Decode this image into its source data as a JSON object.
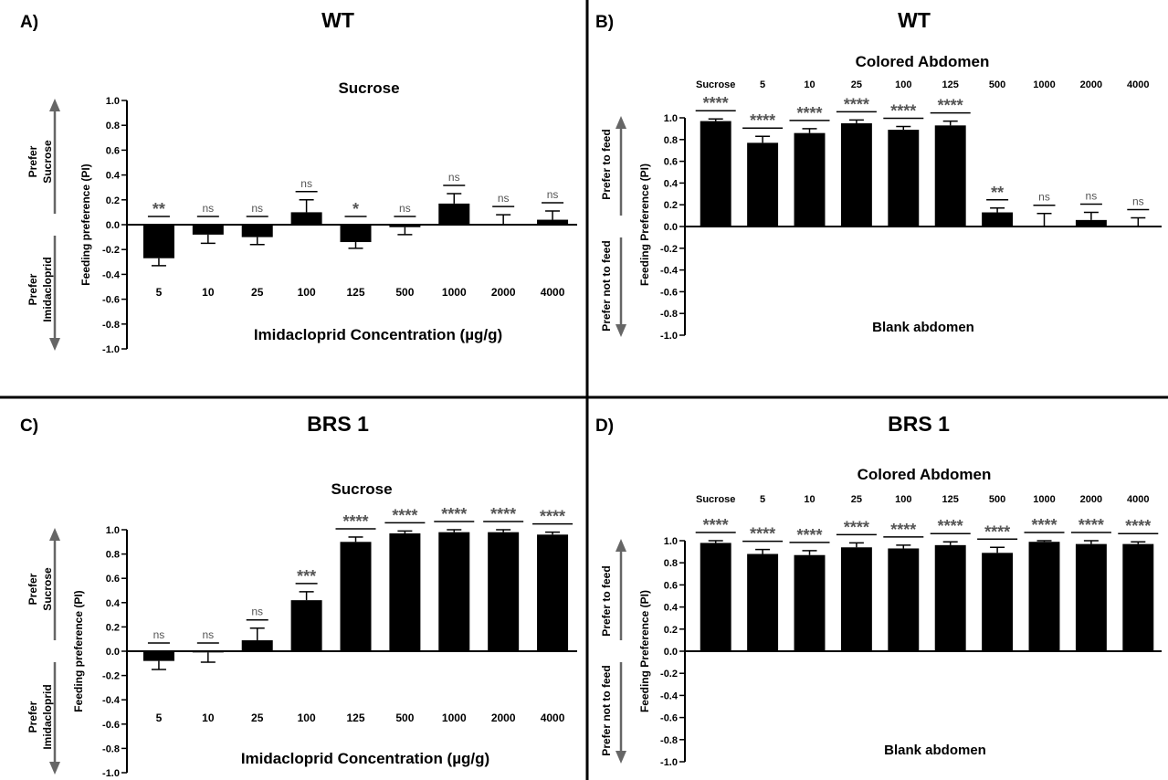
{
  "chart_data": [
    {
      "type": "bar",
      "panel_label": "A)",
      "title": "WT",
      "subtitle": "Sucrose",
      "categories": [
        "5",
        "10",
        "25",
        "100",
        "125",
        "500",
        "1000",
        "2000",
        "4000"
      ],
      "values": [
        -0.27,
        -0.08,
        -0.1,
        0.1,
        -0.14,
        -0.02,
        0.17,
        0.0,
        0.04
      ],
      "errors": [
        0.06,
        0.07,
        0.06,
        0.1,
        0.05,
        0.06,
        0.08,
        0.08,
        0.07
      ],
      "significance": [
        "**",
        "ns",
        "ns",
        "ns",
        "*",
        "ns",
        "ns",
        "ns",
        "ns"
      ],
      "ylabel": "Feeding preference (PI)",
      "xlabel": "Imidacloprid Concentration (µg/g)",
      "ylim": [
        -1.0,
        1.0
      ],
      "yticks": [
        "1.0",
        "0.8",
        "0.6",
        "0.4",
        "0.2",
        "0.0",
        "-0.2",
        "-0.4",
        "-0.6",
        "-0.8",
        "-1.0"
      ],
      "arrow_up_label": [
        "Prefer",
        "Sucrose"
      ],
      "arrow_down_label": [
        "Prefer",
        "Imidacloprid"
      ]
    },
    {
      "type": "bar",
      "panel_label": "B)",
      "title": "WT",
      "subtitle": "Colored Abdomen",
      "categories": [
        "Sucrose",
        "5",
        "10",
        "25",
        "100",
        "125",
        "500",
        "1000",
        "2000",
        "4000"
      ],
      "values": [
        0.97,
        0.77,
        0.86,
        0.95,
        0.89,
        0.93,
        0.13,
        0.0,
        0.06,
        0.0
      ],
      "errors": [
        0.02,
        0.06,
        0.04,
        0.03,
        0.03,
        0.04,
        0.04,
        0.12,
        0.07,
        0.08
      ],
      "significance": [
        "****",
        "****",
        "****",
        "****",
        "****",
        "****",
        "**",
        "ns",
        "ns",
        "ns"
      ],
      "ylabel": "Feeding Preference (PI)",
      "bottom_label": "Blank abdomen",
      "ylim": [
        -1.0,
        1.0
      ],
      "yticks": [
        "1.0",
        "0.8",
        "0.6",
        "0.4",
        "0.2",
        "0.0",
        "-0.2",
        "-0.4",
        "-0.6",
        "-0.8",
        "-1.0"
      ],
      "arrow_up_label": [
        "Prefer to feed"
      ],
      "arrow_down_label": [
        "Prefer not to feed"
      ]
    },
    {
      "type": "bar",
      "panel_label": "C)",
      "title": "BRS 1",
      "subtitle": "Sucrose",
      "categories": [
        "5",
        "10",
        "25",
        "100",
        "125",
        "500",
        "1000",
        "2000",
        "4000"
      ],
      "values": [
        -0.08,
        -0.01,
        0.09,
        0.42,
        0.9,
        0.97,
        0.98,
        0.98,
        0.96
      ],
      "errors": [
        0.07,
        0.08,
        0.1,
        0.07,
        0.04,
        0.02,
        0.02,
        0.02,
        0.02
      ],
      "significance": [
        "ns",
        "ns",
        "ns",
        "***",
        "****",
        "****",
        "****",
        "****",
        "****"
      ],
      "ylabel": "Feeding preference (PI)",
      "xlabel": "Imidacloprid Concentration (µg/g)",
      "ylim": [
        -1.0,
        1.0
      ],
      "yticks": [
        "1.0",
        "0.8",
        "0.6",
        "0.4",
        "0.2",
        "0.0",
        "-0.2",
        "-0.4",
        "-0.6",
        "-0.8",
        "-1.0"
      ],
      "arrow_up_label": [
        "Prefer",
        "Sucrose"
      ],
      "arrow_down_label": [
        "Prefer",
        "Imidacloprid"
      ]
    },
    {
      "type": "bar",
      "panel_label": "D)",
      "title": "BRS 1",
      "subtitle": "Colored Abdomen",
      "categories": [
        "Sucrose",
        "5",
        "10",
        "25",
        "100",
        "125",
        "500",
        "1000",
        "2000",
        "4000"
      ],
      "values": [
        0.98,
        0.88,
        0.87,
        0.94,
        0.93,
        0.96,
        0.89,
        0.99,
        0.97,
        0.97
      ],
      "errors": [
        0.02,
        0.04,
        0.04,
        0.04,
        0.03,
        0.03,
        0.05,
        0.01,
        0.03,
        0.02
      ],
      "significance": [
        "****",
        "****",
        "****",
        "****",
        "****",
        "****",
        "****",
        "****",
        "****",
        "****"
      ],
      "ylabel": "Feeding Preference (PI)",
      "bottom_label": "Blank abdomen",
      "ylim": [
        -1.0,
        1.0
      ],
      "yticks": [
        "1.0",
        "0.8",
        "0.6",
        "0.4",
        "0.2",
        "0.0",
        "-0.2",
        "-0.4",
        "-0.6",
        "-0.8",
        "-1.0"
      ],
      "arrow_up_label": [
        "Prefer to feed"
      ],
      "arrow_down_label": [
        "Prefer not to feed"
      ]
    }
  ]
}
